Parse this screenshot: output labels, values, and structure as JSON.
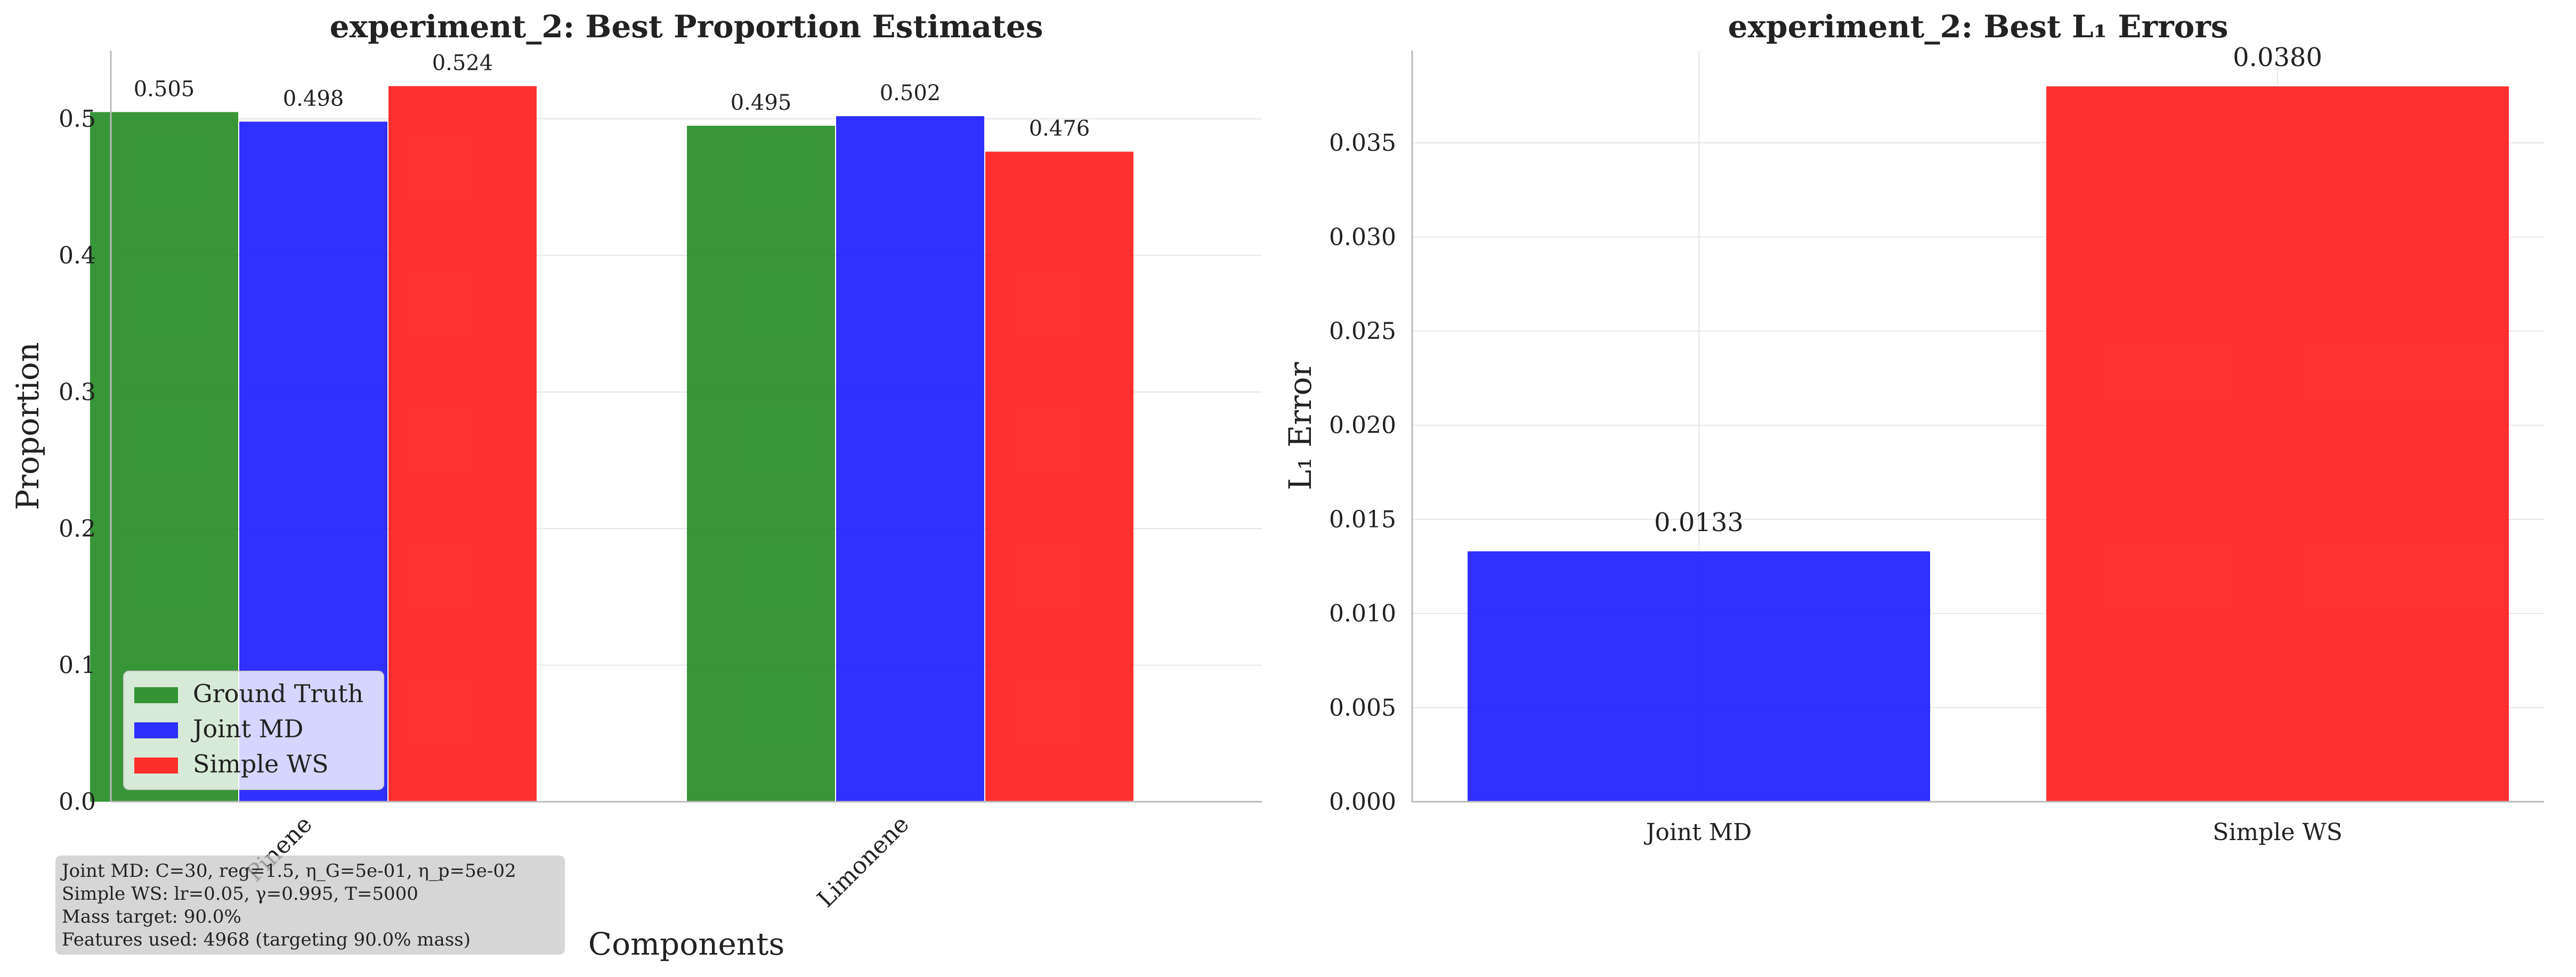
{
  "figure_notes": [
    "Joint MD: C=30, reg=1.5, η_G=5e-01, η_p=5e-02",
    "Simple WS: lr=0.05, γ=0.995, T=5000",
    "Mass target: 90.0%",
    "Features used: 4968 (targeting 90.0% mass)"
  ],
  "colors": {
    "ground_truth": "#228B22",
    "joint_md": "#1a1aff",
    "simple_ws": "#ff1a1a"
  },
  "chart_data": [
    {
      "type": "bar",
      "title": "experiment_2: Best Proportion Estimates",
      "xlabel": "Components",
      "ylabel": "Proportion",
      "categories": [
        "Pinene",
        "Limonene"
      ],
      "series": [
        {
          "name": "Ground Truth",
          "values": [
            0.505,
            0.495
          ],
          "labels": [
            "0.505",
            "0.495"
          ]
        },
        {
          "name": "Joint MD",
          "values": [
            0.498,
            0.502
          ],
          "labels": [
            "0.498",
            "0.502"
          ]
        },
        {
          "name": "Simple WS",
          "values": [
            0.524,
            0.476
          ],
          "labels": [
            "0.524",
            "0.476"
          ]
        }
      ],
      "ylim": [
        0,
        0.55
      ],
      "yticks": [
        "0.0",
        "0.1",
        "0.2",
        "0.3",
        "0.4",
        "0.5"
      ],
      "grid": true,
      "legend": "lower-left"
    },
    {
      "type": "bar",
      "title": "experiment_2: Best L₁ Errors",
      "xlabel": "",
      "ylabel": "L₁ Error",
      "categories": [
        "Joint MD",
        "Simple WS"
      ],
      "values": [
        0.0133,
        0.038
      ],
      "labels": [
        "0.0133",
        "0.0380"
      ],
      "ylim": [
        0,
        0.0399
      ],
      "yticks": [
        "0.000",
        "0.005",
        "0.010",
        "0.015",
        "0.020",
        "0.025",
        "0.030",
        "0.035"
      ],
      "grid": true
    }
  ]
}
